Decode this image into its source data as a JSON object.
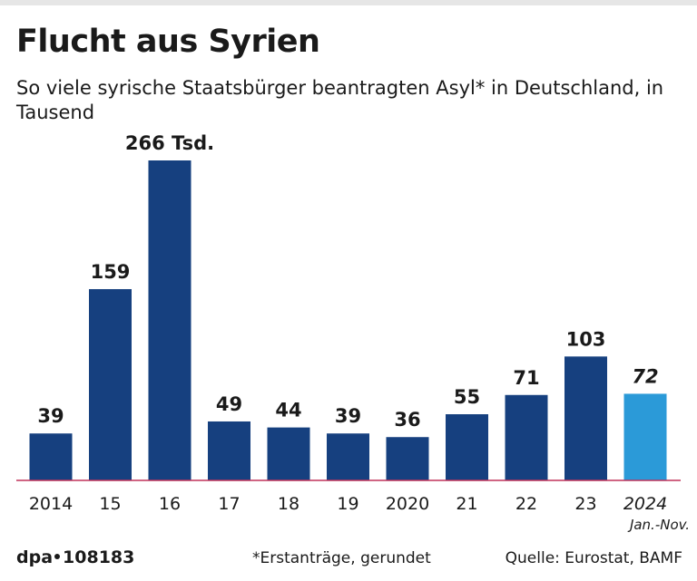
{
  "header": {
    "title": "Flucht aus Syrien",
    "subtitle": "So viele syrische Staatsbürger beantragten Asyl* in Deutschland, in Tausend"
  },
  "footer": {
    "brand": "dpa",
    "id": "108183",
    "note": "*Erstanträge, gerundet",
    "source": "Quelle: Eurostat, BAMF"
  },
  "colors": {
    "bar": "#16407f",
    "highlight": "#2b9ad8",
    "baseline": "#c0325a",
    "text": "#1a1a1a"
  },
  "chart_data": {
    "type": "bar",
    "title": "Flucht aus Syrien",
    "ylabel": "in Tausend",
    "ylim": [
      0,
      266
    ],
    "grid": false,
    "categories": [
      "2014",
      "15",
      "16",
      "17",
      "18",
      "19",
      "2020",
      "21",
      "22",
      "23",
      "2024"
    ],
    "values": [
      39,
      159,
      266,
      49,
      44,
      39,
      36,
      55,
      71,
      103,
      72
    ],
    "value_labels": [
      "39",
      "159",
      "266 Tsd.",
      "49",
      "44",
      "39",
      "36",
      "55",
      "71",
      "103",
      "72"
    ],
    "highlight_index": 10,
    "highlight_note": "Jan.-Nov."
  }
}
